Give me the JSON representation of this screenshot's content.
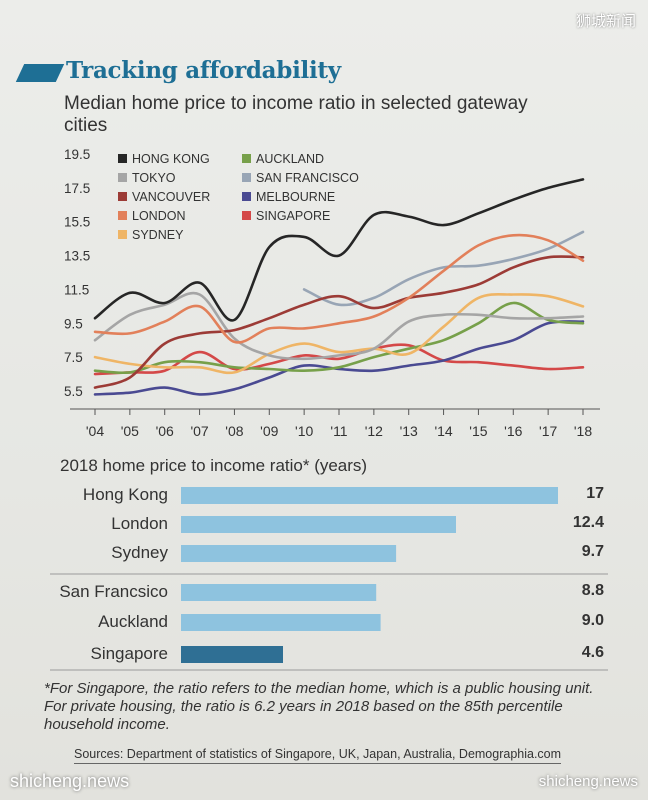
{
  "watermark_top": "狮城新闻",
  "watermark_left": "shicheng.news",
  "watermark_right": "shicheng.news",
  "title": "Tracking affordability",
  "subtitle": "Median home price to income ratio in selected gateway cities",
  "chart_data": [
    {
      "type": "line",
      "title": "Median home price to income ratio in selected gateway cities",
      "x": [
        "'04",
        "'05",
        "'06",
        "'07",
        "'08",
        "'09",
        "'10",
        "'11",
        "'12",
        "'13",
        "'14",
        "'15",
        "'16",
        "'17",
        "'18"
      ],
      "ylim": [
        4.5,
        20
      ],
      "yticks": [
        "19.5",
        "17.5",
        "15.5",
        "13.5",
        "11.5",
        "9.5",
        "7.5",
        "5.5"
      ],
      "grid": false,
      "legend_position": "top-left",
      "series": [
        {
          "name": "HONG KONG",
          "color": "#262626",
          "values": [
            9.8,
            11.3,
            10.7,
            11.9,
            9.7,
            14,
            14.6,
            13.5,
            15.9,
            15.8,
            15.3,
            16.0,
            16.8,
            17.5,
            18
          ]
        },
        {
          "name": "TOKYO",
          "color": "#a5a5a5",
          "values": [
            8.5,
            10.0,
            10.6,
            11.2,
            8.6,
            7.6,
            7.4,
            7.6,
            8.0,
            9.6,
            10.0,
            10.0,
            9.8,
            9.8,
            9.9
          ]
        },
        {
          "name": "VANCOUVER",
          "color": "#9c3b36",
          "values": [
            5.7,
            6.3,
            8.3,
            8.9,
            9.1,
            9.8,
            10.6,
            11.1,
            10.4,
            11.0,
            11.3,
            11.8,
            12.8,
            13.4,
            13.4
          ]
        },
        {
          "name": "LONDON",
          "color": "#e2805a",
          "values": [
            9.0,
            8.9,
            9.6,
            10.5,
            8.4,
            9.2,
            9.2,
            9.5,
            9.9,
            11.0,
            12.6,
            14.1,
            14.7,
            14.4,
            13.2
          ]
        },
        {
          "name": "SYDNEY",
          "color": "#efb566",
          "values": [
            7.5,
            7.1,
            6.9,
            6.9,
            6.6,
            7.7,
            8.3,
            7.8,
            8.0,
            7.7,
            9.3,
            11.0,
            11.2,
            11.1,
            10.5
          ]
        },
        {
          "name": "AUCKLAND",
          "color": "#77a04a",
          "values": [
            6.7,
            6.6,
            7.2,
            7.2,
            6.9,
            6.8,
            6.7,
            6.9,
            7.5,
            8.0,
            8.5,
            9.5,
            10.7,
            9.7,
            9.5
          ]
        },
        {
          "name": "SAN FRANCISCO",
          "color": "#98a5b5",
          "values": [
            null,
            null,
            null,
            null,
            null,
            null,
            11.5,
            10.6,
            11.0,
            12.1,
            12.8,
            12.9,
            13.3,
            13.9,
            14.9
          ]
        },
        {
          "name": "MELBOURNE",
          "color": "#4a4a92",
          "values": [
            5.3,
            5.4,
            5.7,
            5.3,
            5.6,
            6.3,
            7.0,
            6.8,
            6.7,
            7.0,
            7.3,
            8.0,
            8.5,
            9.5,
            9.6
          ]
        },
        {
          "name": "SINGAPORE",
          "color": "#d44848",
          "values": [
            6.5,
            6.6,
            6.7,
            7.8,
            6.8,
            7.1,
            7.6,
            7.4,
            8.0,
            8.2,
            7.3,
            7.2,
            7.0,
            6.8,
            6.9
          ]
        }
      ]
    },
    {
      "type": "bar",
      "title": "2018 home price to income ratio* (years)",
      "categories": [
        "Hong Kong",
        "London",
        "Sydney",
        "San Francsico",
        "Auckland",
        "Singapore"
      ],
      "values": [
        17,
        12.4,
        9.7,
        8.8,
        9.0,
        4.6
      ],
      "value_labels": [
        "17",
        "12.4",
        "9.7",
        "8.8",
        "9.0",
        "4.6"
      ],
      "colors": [
        "#8ec3df",
        "#8ec3df",
        "#8ec3df",
        "#8ec3df",
        "#8ec3df",
        "#2f6f94"
      ]
    }
  ],
  "footnote": "*For Singapore, the ratio refers to the median home, which is a public housing unit. For private housing, the ratio is 6.2 years in 2018 based on the 85th percentile household income.",
  "sources": "Sources: Department of statistics of Singapore, UK, Japan, Australia, Demographia.com"
}
